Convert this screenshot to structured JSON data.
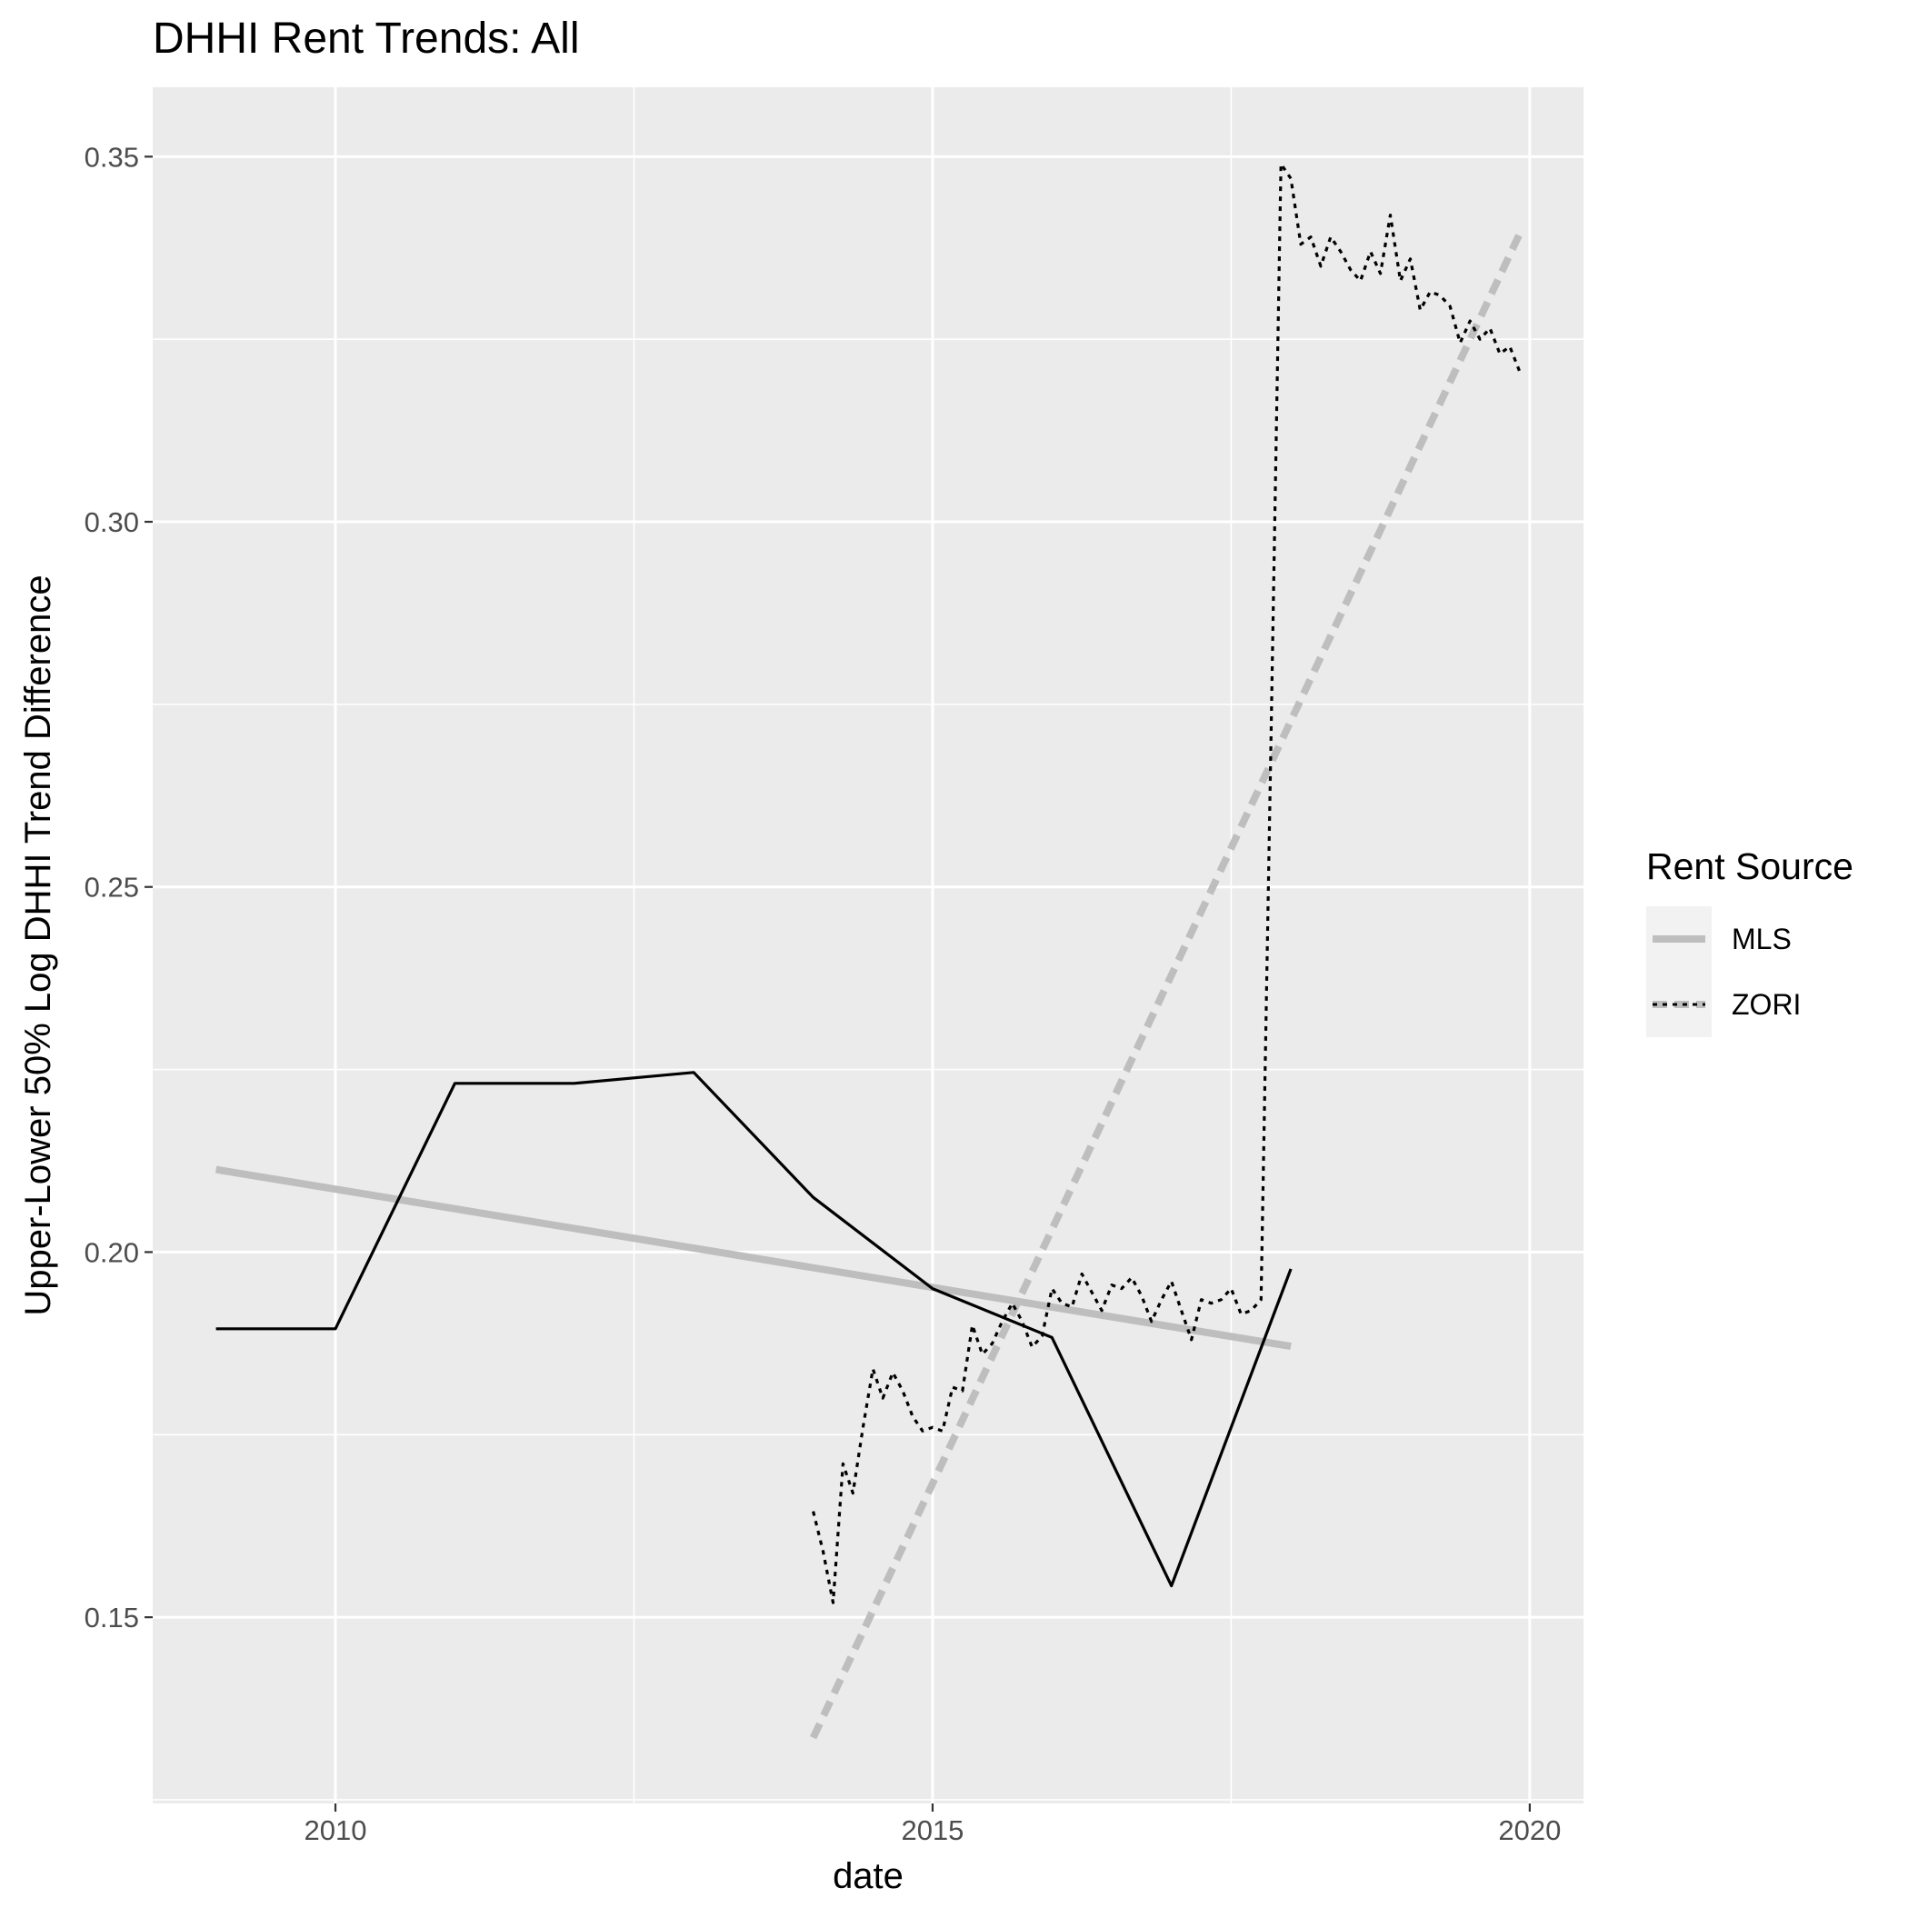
{
  "chart_data": {
    "type": "line",
    "title": "DHHI Rent Trends: All",
    "xlabel": "date",
    "ylabel": "Upper-Lower 50% Log DHHI Trend Difference",
    "xlim": [
      2008.47,
      2020.45
    ],
    "ylim": [
      0.1245,
      0.3595
    ],
    "x_ticks": [
      2010,
      2015,
      2020
    ],
    "x_tick_labels": [
      "2010",
      "2015",
      "2020"
    ],
    "y_ticks": [
      0.15,
      0.2,
      0.25,
      0.3,
      0.35
    ],
    "y_tick_labels": [
      "0.15",
      "0.20",
      "0.25",
      "0.30",
      "0.35"
    ],
    "grid": true,
    "legend": {
      "title": "Rent Source",
      "position": "right",
      "entries": [
        "MLS",
        "ZORI"
      ]
    },
    "series": [
      {
        "name": "MLS",
        "kind": "data",
        "linetype": "solid",
        "color": "#000000",
        "x": [
          2009.0,
          2010.0,
          2011.0,
          2012.0,
          2013.0,
          2014.0,
          2015.0,
          2016.0,
          2017.0,
          2018.0
        ],
        "y": [
          0.1895,
          0.1895,
          0.2231,
          0.2231,
          0.2246,
          0.2075,
          0.195,
          0.1883,
          0.1543,
          0.1977
        ]
      },
      {
        "name": "MLS",
        "kind": "trend",
        "linetype": "solid",
        "color": "#bebebe",
        "x": [
          2009.0,
          2018.0
        ],
        "y": [
          0.2113,
          0.1871
        ]
      },
      {
        "name": "ZORI",
        "kind": "data",
        "linetype": "dotted",
        "color": "#000000",
        "x": [
          2014.0,
          2014.083,
          2014.167,
          2014.25,
          2014.333,
          2014.417,
          2014.5,
          2014.583,
          2014.667,
          2014.75,
          2014.833,
          2014.917,
          2015.0,
          2015.083,
          2015.167,
          2015.25,
          2015.333,
          2015.417,
          2015.5,
          2015.583,
          2015.667,
          2015.75,
          2015.833,
          2015.917,
          2016.0,
          2016.083,
          2016.167,
          2016.25,
          2016.333,
          2016.417,
          2016.5,
          2016.583,
          2016.667,
          2016.75,
          2016.833,
          2016.917,
          2017.0,
          2017.083,
          2017.167,
          2017.25,
          2017.333,
          2017.417,
          2017.5,
          2017.583,
          2017.667,
          2017.75,
          2017.833,
          2017.917,
          2018.0,
          2018.083,
          2018.167,
          2018.25,
          2018.333,
          2018.417,
          2018.5,
          2018.583,
          2018.667,
          2018.75,
          2018.833,
          2018.917,
          2019.0,
          2019.083,
          2019.167,
          2019.25,
          2019.333,
          2019.417,
          2019.5,
          2019.583,
          2019.667,
          2019.75,
          2019.833,
          2019.917
        ],
        "y": [
          0.1645,
          0.159,
          0.152,
          0.171,
          0.167,
          0.176,
          0.184,
          0.18,
          0.1835,
          0.181,
          0.1775,
          0.1755,
          0.176,
          0.1755,
          0.1815,
          0.181,
          0.19,
          0.186,
          0.1875,
          0.1905,
          0.193,
          0.1905,
          0.187,
          0.1885,
          0.195,
          0.193,
          0.1925,
          0.197,
          0.1945,
          0.192,
          0.1955,
          0.195,
          0.1965,
          0.194,
          0.1905,
          0.1935,
          0.196,
          0.192,
          0.188,
          0.1935,
          0.193,
          0.1935,
          0.195,
          0.1915,
          0.192,
          0.1935,
          0.27,
          0.349,
          0.347,
          0.338,
          0.339,
          0.335,
          0.339,
          0.337,
          0.3345,
          0.333,
          0.337,
          0.334,
          0.342,
          0.333,
          0.336,
          0.329,
          0.3315,
          0.331,
          0.3295,
          0.3245,
          0.3275,
          0.325,
          0.3265,
          0.323,
          0.324,
          0.3205
        ]
      },
      {
        "name": "ZORI",
        "kind": "trend",
        "linetype": "dashed",
        "color": "#bebebe",
        "x": [
          2014.0,
          2019.917
        ],
        "y": [
          0.1335,
          0.3395
        ]
      }
    ]
  }
}
